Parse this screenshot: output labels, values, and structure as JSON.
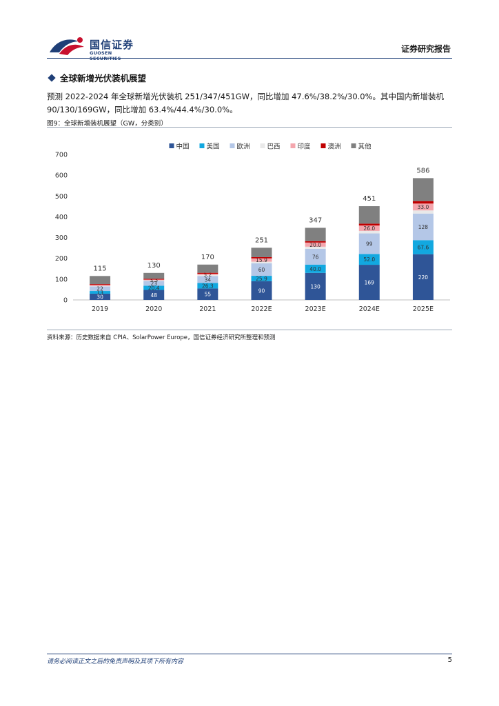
{
  "header": {
    "logo_cn": "国信证券",
    "logo_en": "GUOSEN SECURITIES",
    "report_type": "证券研究报告"
  },
  "section": {
    "title": "全球新增光伏装机展望"
  },
  "paragraph": {
    "line1": "预测 2022-2024 年全球新增光伏装机 251/347/451GW，同比增加 47.6%/38.2%/30.0%。其中国内新增装机",
    "line2": "90/130/169GW，同比增加 63.4%/44.4%/30.0%。"
  },
  "figure": {
    "caption": "图9：全球新增装机展望（GW，分类别）",
    "source": "资料来源：历史数据来自 CPIA、SolarPower Europe，国信证券经济研究所整理和预测"
  },
  "chart_data": {
    "type": "bar",
    "stacked": true,
    "categories": [
      "2019",
      "2020",
      "2021",
      "2022E",
      "2023E",
      "2024E",
      "2025E"
    ],
    "totals": [
      115,
      130,
      170,
      251,
      347,
      451,
      586
    ],
    "ylim": [
      0,
      700
    ],
    "yticks": [
      0,
      100,
      200,
      300,
      400,
      500,
      600,
      700
    ],
    "legend_position": "top",
    "grid": false,
    "series": [
      {
        "name": "中国",
        "color": "#2f5597",
        "values": [
          30,
          48,
          55,
          90,
          130,
          169,
          220
        ],
        "labels": [
          "30",
          "48",
          "55",
          "90",
          "130",
          "169",
          "220"
        ]
      },
      {
        "name": "美国",
        "color": "#12a8e0",
        "values": [
          13,
          20.4,
          26.3,
          25.9,
          40,
          52,
          67.6
        ],
        "labels": [
          "13",
          "20.4",
          "26.3",
          "25.9",
          "40.0",
          "52.0",
          "67.6"
        ]
      },
      {
        "name": "欧洲",
        "color": "#b4c7e7",
        "values": [
          22,
          23,
          34,
          60,
          76,
          99,
          128
        ],
        "labels": [
          "22",
          "23",
          "34",
          "60",
          "76",
          "99",
          "128"
        ]
      },
      {
        "name": "巴西",
        "color": "#e9e9e9",
        "values": [
          2,
          3,
          5,
          8,
          10,
          12,
          15
        ],
        "labels": [
          "",
          "",
          "",
          "",
          "",
          "",
          ""
        ]
      },
      {
        "name": "印度",
        "color": "#f4a6ad",
        "values": [
          5,
          3.3,
          5.2,
          15.9,
          20,
          26,
          33
        ],
        "labels": [
          "",
          "3.3",
          "5.2",
          "15.9",
          "20.0",
          "26.0",
          "33.0"
        ]
      },
      {
        "name": "澳洲",
        "color": "#c00000",
        "values": [
          4,
          4,
          5,
          6,
          7,
          9,
          12
        ],
        "labels": [
          "",
          "",
          "",
          "",
          "",
          "",
          ""
        ]
      },
      {
        "name": "其他",
        "color": "#808080",
        "values": [
          39,
          28.3,
          39.5,
          45.2,
          64,
          84,
          110.4
        ],
        "labels": [
          "",
          "",
          "",
          "",
          "",
          "",
          ""
        ]
      }
    ]
  },
  "footer": {
    "disclaimer": "请务必阅读正文之后的免责声明及其项下所有内容",
    "page": "5"
  }
}
